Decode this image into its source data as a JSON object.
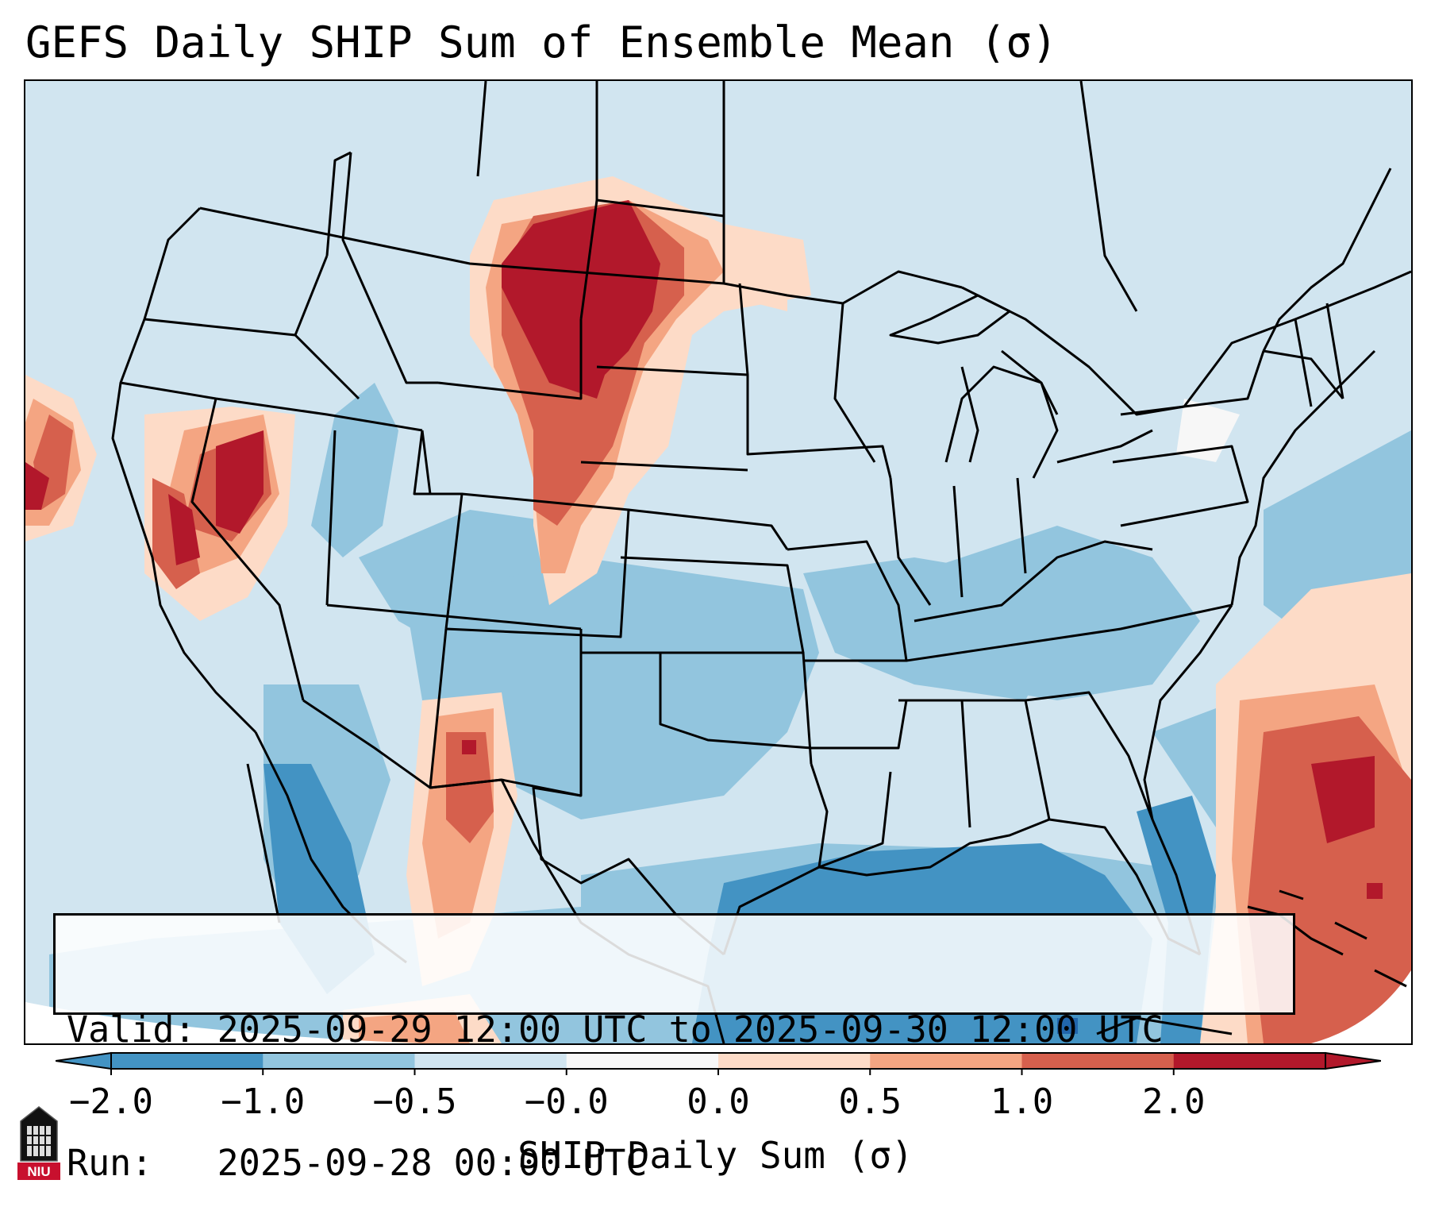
{
  "title": "GEFS Daily SHIP Sum of Ensemble Mean (σ)",
  "info": {
    "valid_line": "Valid: 2025-09-29 12:00 UTC to 2025-09-30 12:00 UTC",
    "run_line": "Run:   2025-09-28 00:00 UTC"
  },
  "colorbar": {
    "label": "SHIP Daily Sum (σ)",
    "ticks": [
      "−2.0",
      "−1.0",
      "−0.5",
      "−0.0",
      "0.0",
      "0.5",
      "1.0",
      "2.0"
    ],
    "colors": [
      "#4393c3",
      "#92c5de",
      "#d1e5f0",
      "#f7f7f7",
      "#fddbc7",
      "#f4a582",
      "#d6604d",
      "#b2182b"
    ],
    "extend": "both"
  },
  "legend_colors": {
    "ocean_mask": "#ffffff",
    "land_border": "#000000"
  },
  "logo": {
    "text": "NIU"
  }
}
